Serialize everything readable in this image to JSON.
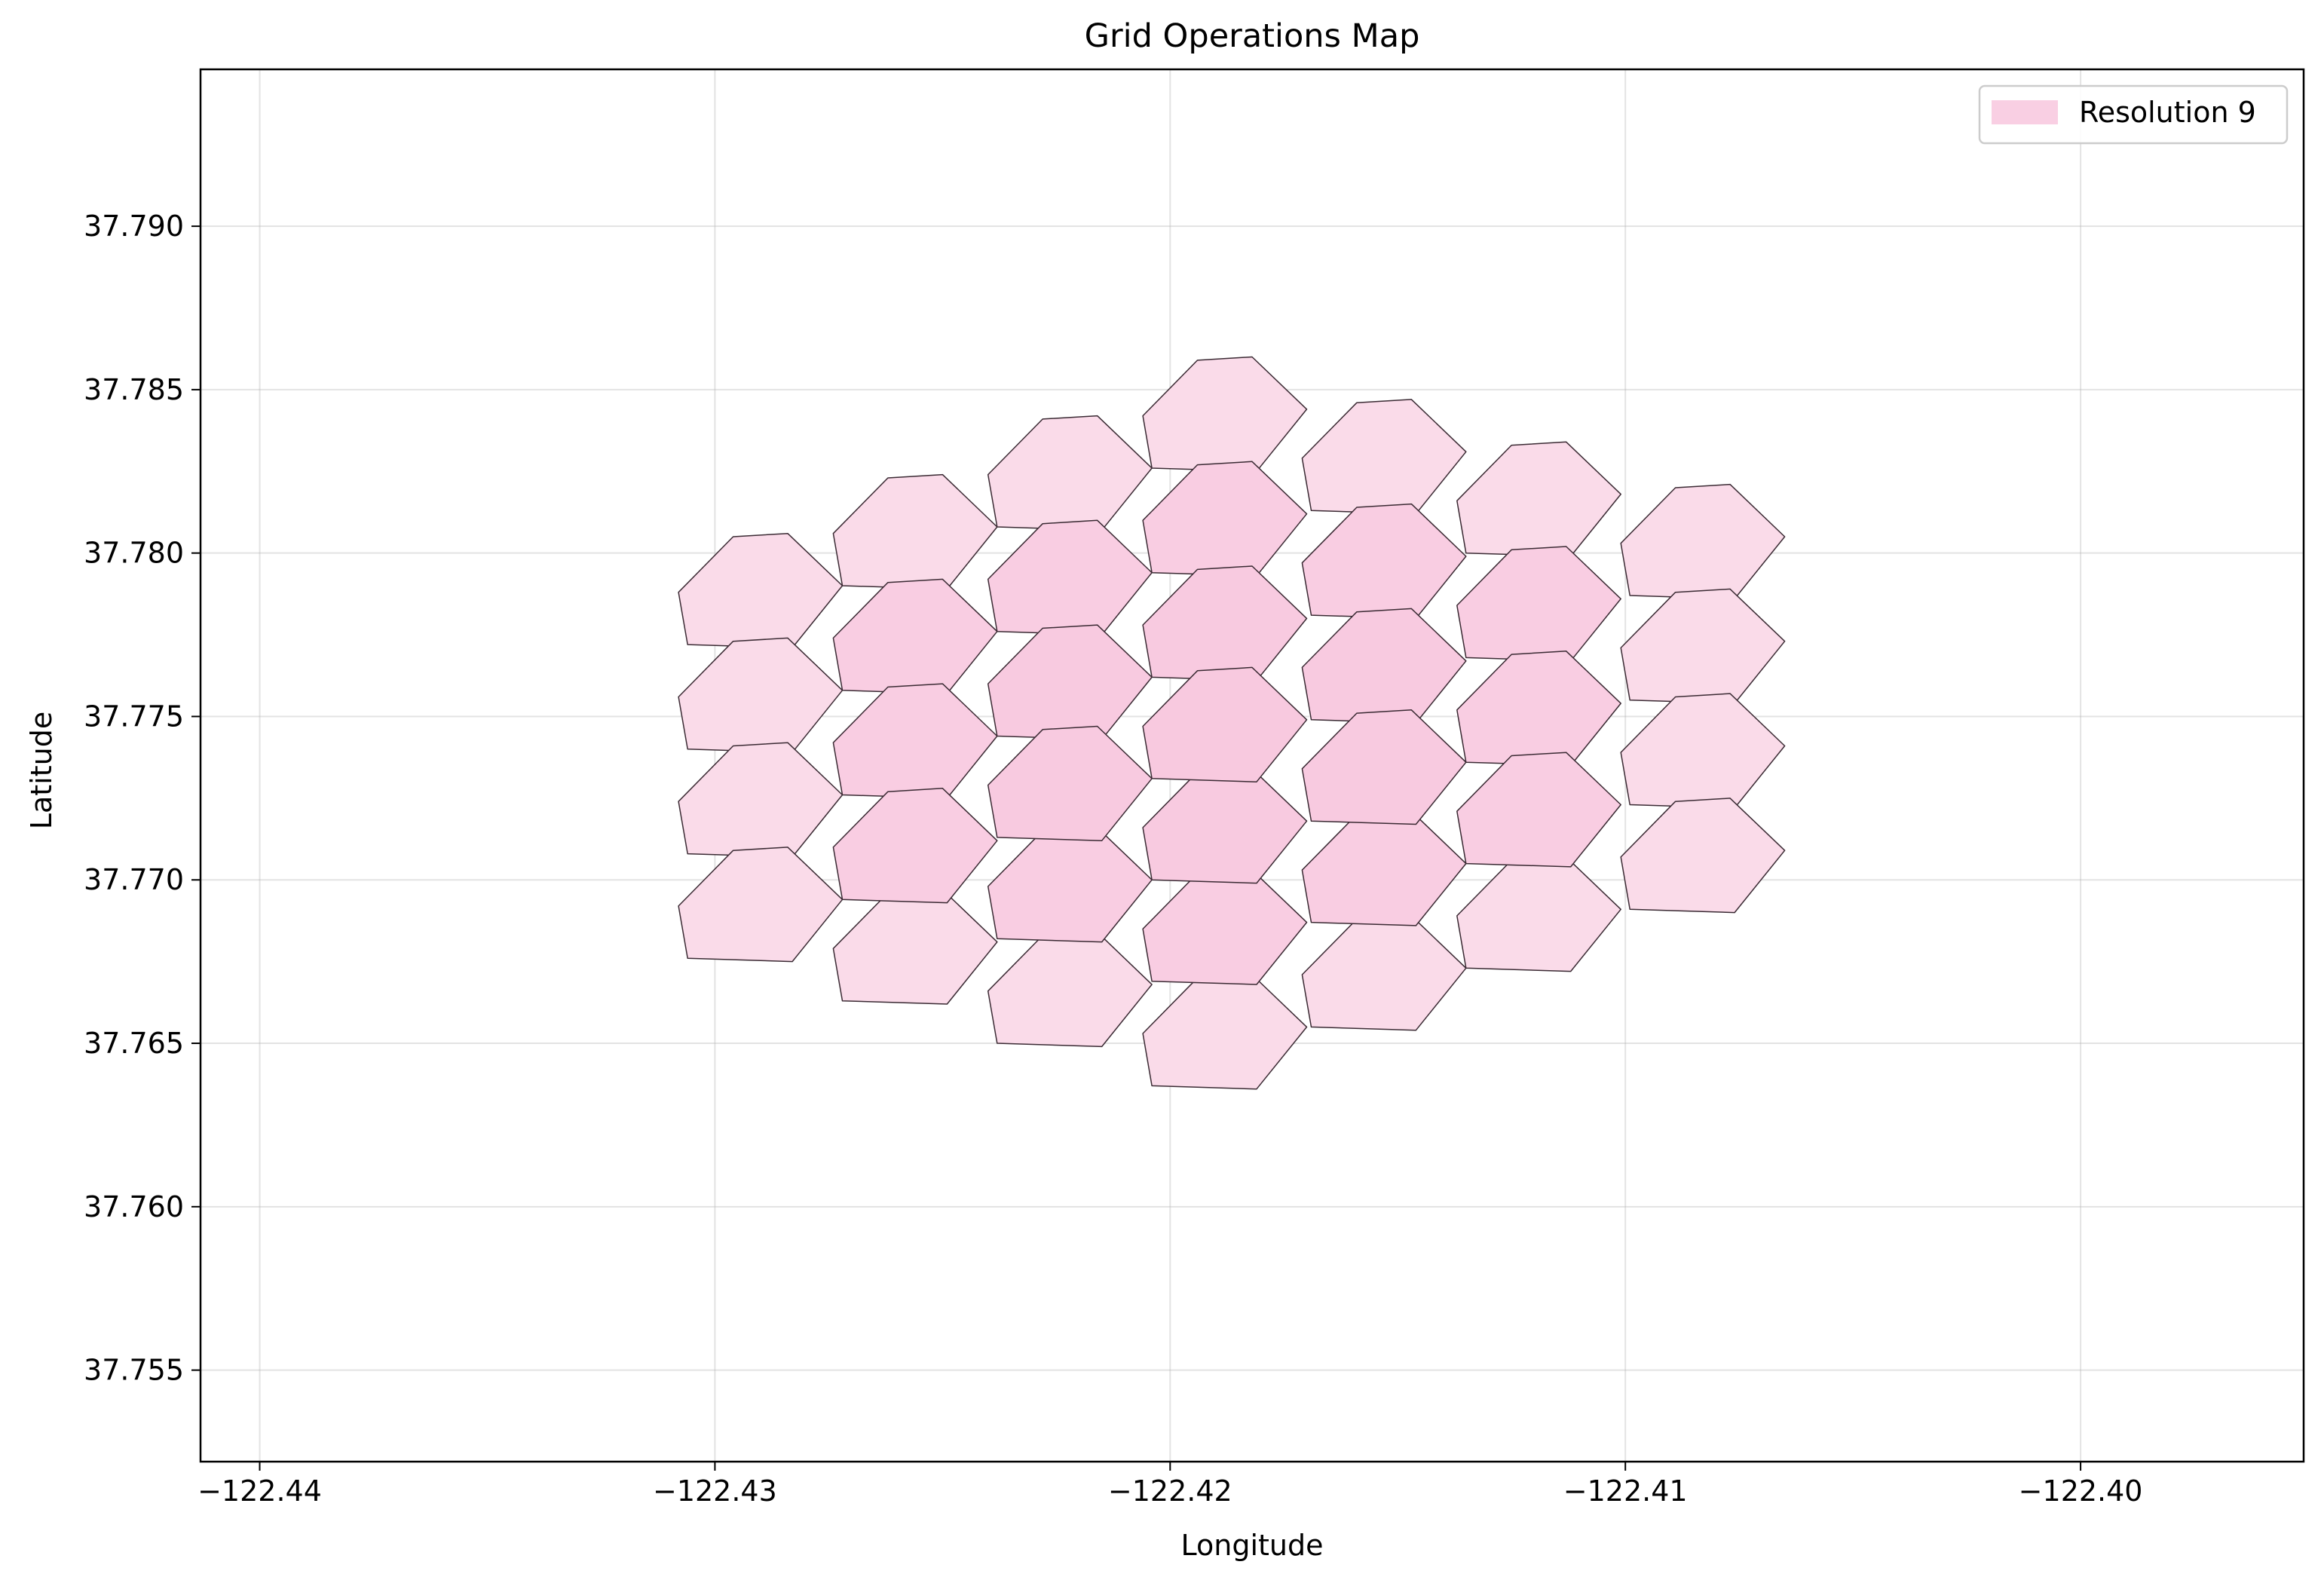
{
  "chart_data": {
    "type": "map",
    "title": "Grid Operations Map",
    "xlabel": "Longitude",
    "ylabel": "Latitude",
    "xlim": [
      -122.4413,
      -122.3951
    ],
    "ylim": [
      37.7522,
      37.7948
    ],
    "xticks": [
      -122.44,
      -122.43,
      -122.42,
      -122.41,
      -122.4
    ],
    "xtick_labels": [
      "−122.44",
      "−122.43",
      "−122.42",
      "−122.41",
      "−122.40"
    ],
    "yticks": [
      37.755,
      37.76,
      37.765,
      37.77,
      37.775,
      37.78,
      37.785,
      37.79
    ],
    "ytick_labels": [
      "37.755",
      "37.760",
      "37.765",
      "37.770",
      "37.775",
      "37.780",
      "37.785",
      "37.790"
    ],
    "grid": true,
    "legend": {
      "label": "Resolution 9",
      "placement": "top-right",
      "color": "#f9cfe3"
    },
    "hex_vertex_offsets": {
      "dlon": [
        1.2,
        0.0,
        -1.2,
        -2.4,
        -2.2,
        0.1
      ],
      "dlat": [
        1.7,
        3.3,
        3.2,
        1.5,
        -0.1,
        -0.2
      ],
      "unit_lon": 0.001,
      "unit_lat": 0.001
    },
    "cells": [
      {
        "lon": -122.4182,
        "lat": 37.7827,
        "fill": "#fadbe9"
      },
      {
        "lon": -122.4216,
        "lat": 37.7809,
        "fill": "#fadbe9"
      },
      {
        "lon": -122.425,
        "lat": 37.7791,
        "fill": "#fadbe9"
      },
      {
        "lon": -122.4284,
        "lat": 37.7773,
        "fill": "#fadbe9"
      },
      {
        "lon": -122.4147,
        "lat": 37.7814,
        "fill": "#fadbe9"
      },
      {
        "lon": -122.4113,
        "lat": 37.7801,
        "fill": "#fadbe9"
      },
      {
        "lon": -122.4077,
        "lat": 37.7788,
        "fill": "#fadbe9"
      },
      {
        "lon": -122.4284,
        "lat": 37.7741,
        "fill": "#fadbe9"
      },
      {
        "lon": -122.4284,
        "lat": 37.7709,
        "fill": "#fadbe9"
      },
      {
        "lon": -122.4284,
        "lat": 37.7677,
        "fill": "#fadbe9"
      },
      {
        "lon": -122.4077,
        "lat": 37.7756,
        "fill": "#fadbe9"
      },
      {
        "lon": -122.4077,
        "lat": 37.7724,
        "fill": "#fadbe9"
      },
      {
        "lon": -122.4077,
        "lat": 37.7692,
        "fill": "#fadbe9"
      },
      {
        "lon": -122.4113,
        "lat": 37.7674,
        "fill": "#fadbe9"
      },
      {
        "lon": -122.4147,
        "lat": 37.7656,
        "fill": "#fadbe9"
      },
      {
        "lon": -122.4182,
        "lat": 37.7638,
        "fill": "#fadbe9"
      },
      {
        "lon": -122.4216,
        "lat": 37.7651,
        "fill": "#fadbe9"
      },
      {
        "lon": -122.425,
        "lat": 37.7664,
        "fill": "#fadbe9"
      },
      {
        "lon": -122.4182,
        "lat": 37.7795,
        "fill": "#f9cde2"
      },
      {
        "lon": -122.4216,
        "lat": 37.7777,
        "fill": "#f9cde2"
      },
      {
        "lon": -122.4147,
        "lat": 37.7782,
        "fill": "#f9cde2"
      },
      {
        "lon": -122.4113,
        "lat": 37.7769,
        "fill": "#f9cde2"
      },
      {
        "lon": -122.425,
        "lat": 37.7759,
        "fill": "#f9cde2"
      },
      {
        "lon": -122.425,
        "lat": 37.7727,
        "fill": "#f9cde2"
      },
      {
        "lon": -122.425,
        "lat": 37.7695,
        "fill": "#f9cde2"
      },
      {
        "lon": -122.4113,
        "lat": 37.7737,
        "fill": "#f9cde2"
      },
      {
        "lon": -122.4113,
        "lat": 37.7706,
        "fill": "#f9cde2"
      },
      {
        "lon": -122.4147,
        "lat": 37.7688,
        "fill": "#f9cde2"
      },
      {
        "lon": -122.4182,
        "lat": 37.767,
        "fill": "#f9cde2"
      },
      {
        "lon": -122.4216,
        "lat": 37.7683,
        "fill": "#f9cde2"
      },
      {
        "lon": -122.4182,
        "lat": 37.7763,
        "fill": "#f8cae0"
      },
      {
        "lon": -122.4216,
        "lat": 37.7745,
        "fill": "#f8cae0"
      },
      {
        "lon": -122.4147,
        "lat": 37.775,
        "fill": "#f8cae0"
      },
      {
        "lon": -122.4216,
        "lat": 37.7714,
        "fill": "#f8cae0"
      },
      {
        "lon": -122.4147,
        "lat": 37.7719,
        "fill": "#f8cae0"
      },
      {
        "lon": -122.4182,
        "lat": 37.7701,
        "fill": "#f8cae0"
      },
      {
        "lon": -122.4182,
        "lat": 37.7732,
        "fill": "#f8c9df"
      }
    ]
  }
}
